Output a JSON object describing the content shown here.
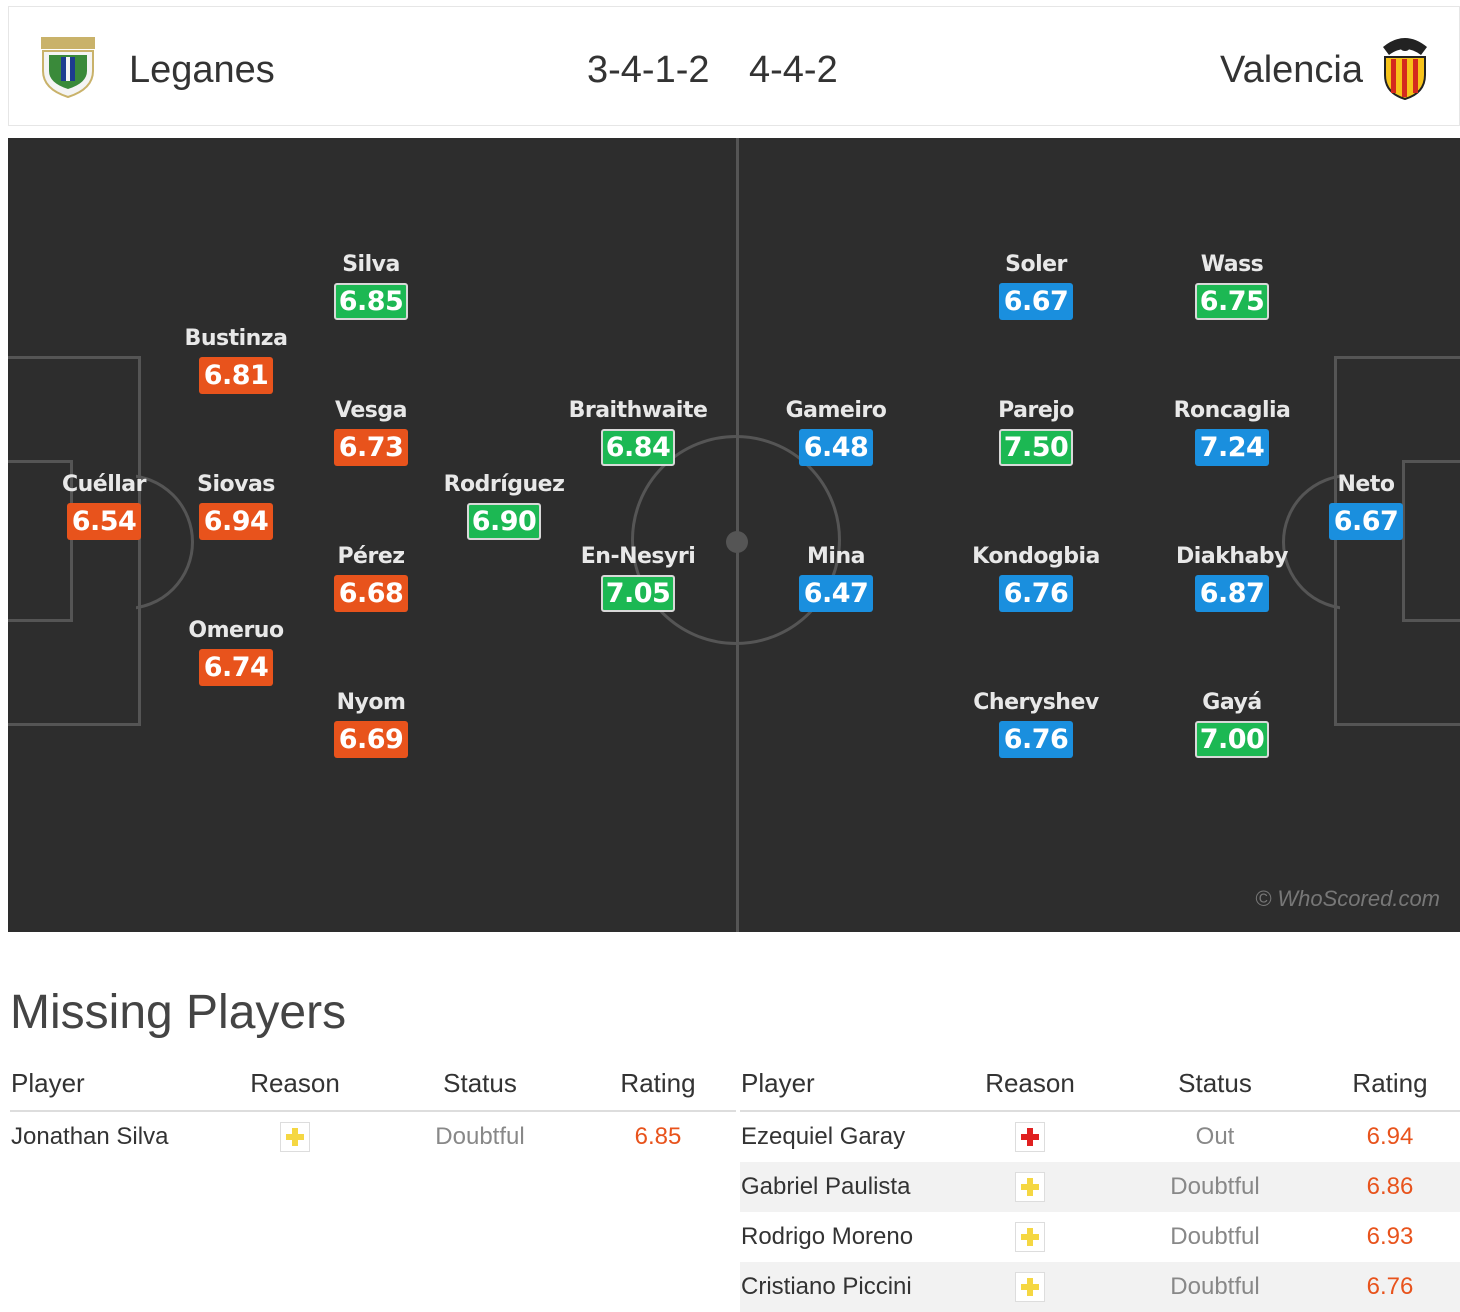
{
  "header": {
    "home_team": "Leganes",
    "away_team": "Valencia",
    "home_formation": "3-4-1-2",
    "away_formation": "4-4-2"
  },
  "colors": {
    "orange": "#e8531c",
    "green": "#1cb853",
    "blue": "#1a8fde",
    "pitch": "#2d2d2d"
  },
  "home_players": [
    {
      "name": "Cuéllar",
      "rating": "6.54",
      "color": "orange"
    },
    {
      "name": "Bustinza",
      "rating": "6.81",
      "color": "orange"
    },
    {
      "name": "Siovas",
      "rating": "6.94",
      "color": "orange"
    },
    {
      "name": "Omeruo",
      "rating": "6.74",
      "color": "orange"
    },
    {
      "name": "Silva",
      "rating": "6.85",
      "color": "green"
    },
    {
      "name": "Vesga",
      "rating": "6.73",
      "color": "orange"
    },
    {
      "name": "Pérez",
      "rating": "6.68",
      "color": "orange"
    },
    {
      "name": "Nyom",
      "rating": "6.69",
      "color": "orange"
    },
    {
      "name": "Rodríguez",
      "rating": "6.90",
      "color": "green"
    },
    {
      "name": "Braithwaite",
      "rating": "6.84",
      "color": "green"
    },
    {
      "name": "En-Nesyri",
      "rating": "7.05",
      "color": "green"
    }
  ],
  "away_players": [
    {
      "name": "Gameiro",
      "rating": "6.48",
      "color": "blue"
    },
    {
      "name": "Mina",
      "rating": "6.47",
      "color": "blue"
    },
    {
      "name": "Soler",
      "rating": "6.67",
      "color": "blue"
    },
    {
      "name": "Parejo",
      "rating": "7.50",
      "color": "green"
    },
    {
      "name": "Kondogbia",
      "rating": "6.76",
      "color": "blue"
    },
    {
      "name": "Cheryshev",
      "rating": "6.76",
      "color": "blue"
    },
    {
      "name": "Wass",
      "rating": "6.75",
      "color": "green"
    },
    {
      "name": "Roncaglia",
      "rating": "7.24",
      "color": "blue"
    },
    {
      "name": "Diakhaby",
      "rating": "6.87",
      "color": "blue"
    },
    {
      "name": "Gayá",
      "rating": "7.00",
      "color": "green"
    },
    {
      "name": "Neto",
      "rating": "6.67",
      "color": "blue"
    }
  ],
  "watermark": "© WhoScored.com",
  "missing": {
    "title": "Missing Players",
    "columns": [
      "Player",
      "Reason",
      "Status",
      "Rating"
    ],
    "home": [
      {
        "player": "Jonathan Silva",
        "reason": "doubtful-icon",
        "status": "Doubtful",
        "rating": "6.85"
      }
    ],
    "away": [
      {
        "player": "Ezequiel Garay",
        "reason": "injury-icon",
        "status": "Out",
        "rating": "6.94"
      },
      {
        "player": "Gabriel Paulista",
        "reason": "doubtful-icon",
        "status": "Doubtful",
        "rating": "6.86"
      },
      {
        "player": "Rodrigo Moreno",
        "reason": "doubtful-icon",
        "status": "Doubtful",
        "rating": "6.93"
      },
      {
        "player": "Cristiano Piccini",
        "reason": "doubtful-icon",
        "status": "Doubtful",
        "rating": "6.76"
      }
    ]
  }
}
